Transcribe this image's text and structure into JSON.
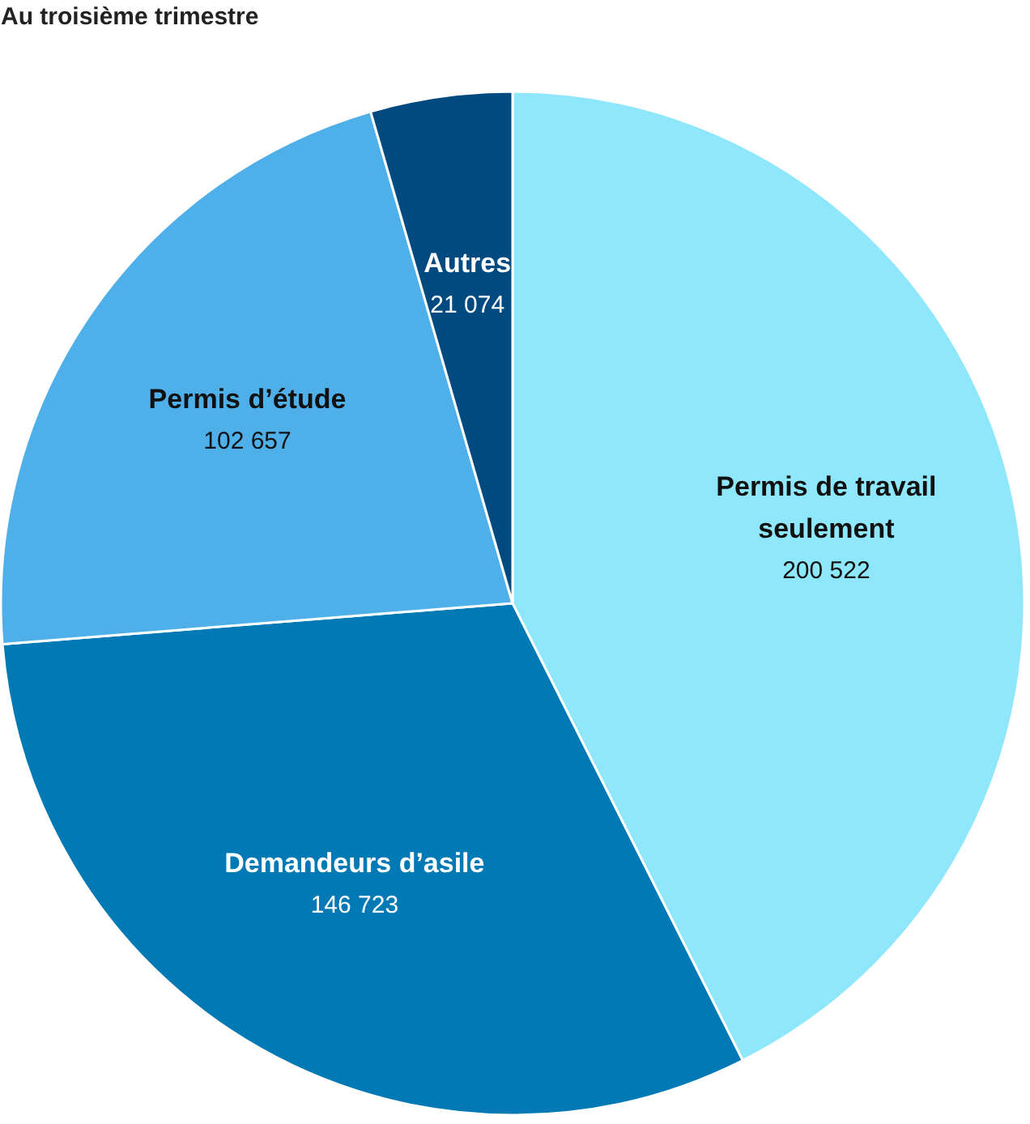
{
  "chart_data": {
    "type": "pie",
    "title": "Au troisième trimestre",
    "categories": [
      "Permis de travail seulement",
      "Demandeurs d’asile",
      "Permis d’étude",
      "Autres"
    ],
    "values": [
      200522,
      146723,
      102657,
      21074
    ],
    "value_labels": [
      "200 522",
      "146 723",
      "102 657",
      "21 074"
    ],
    "colors": [
      "#8fe7fc",
      "#0079b5",
      "#4fb0e9",
      "#004a80"
    ]
  }
}
